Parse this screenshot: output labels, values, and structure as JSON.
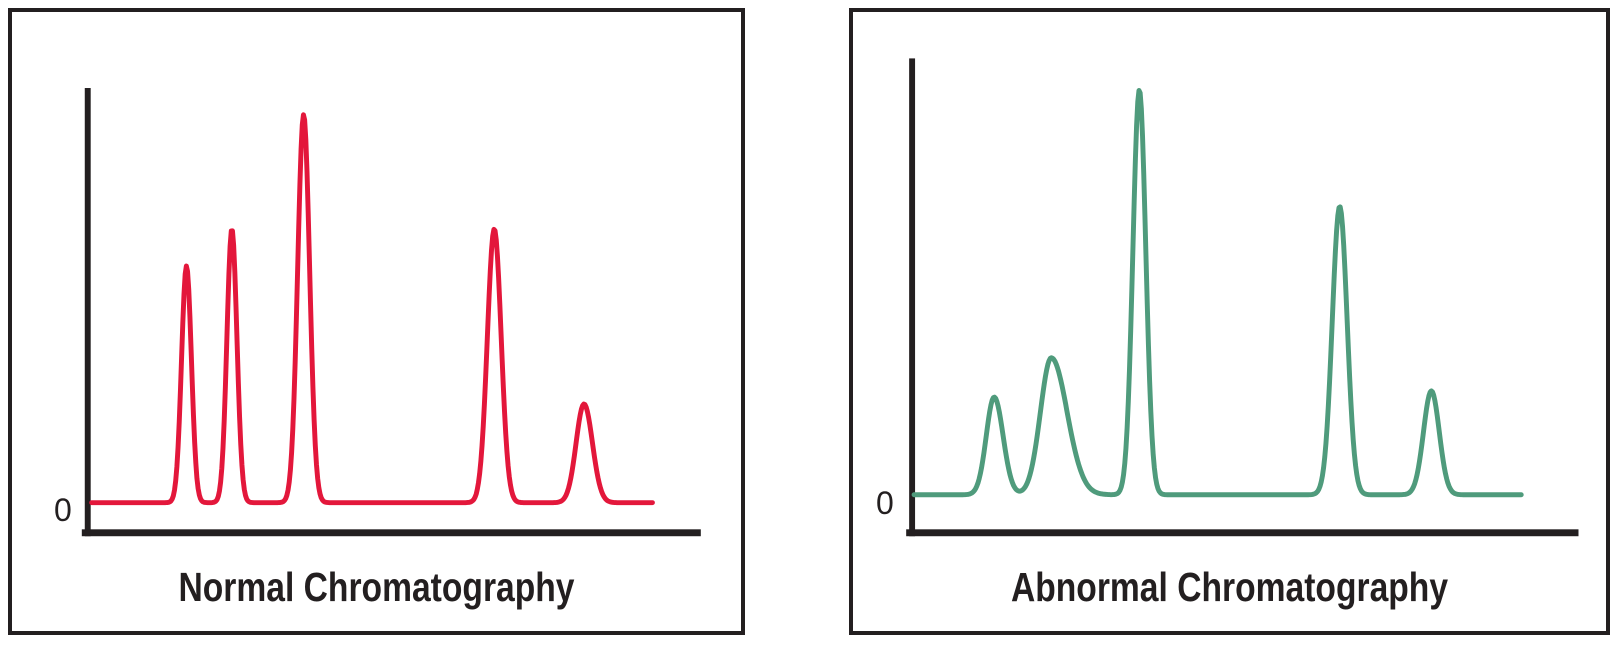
{
  "colors": {
    "axis": "#231f20",
    "border": "#231f20",
    "text": "#231f20",
    "normal_line": "#e3173b",
    "abnormal_line": "#4f9b7c",
    "background": "#ffffff"
  },
  "chart_data": [
    {
      "type": "line",
      "title": "Normal Chromatography",
      "y_zero_tick": "0",
      "xlabel": "",
      "ylabel": "",
      "grid": false,
      "legend": "none",
      "line_color": "#e3173b",
      "x_unit": "fraction_of_baseline",
      "height_unit": "fraction_of_y_axis_span",
      "baseline_value": 0,
      "x_range": [
        0,
        1
      ],
      "peaks": [
        {
          "position": 0.169,
          "height": 0.571,
          "sigma_left": 0.0088,
          "sigma_right": 0.0088
        },
        {
          "position": 0.25,
          "height": 0.66,
          "sigma_left": 0.0088,
          "sigma_right": 0.009
        },
        {
          "position": 0.378,
          "height": 0.936,
          "sigma_left": 0.0106,
          "sigma_right": 0.0106
        },
        {
          "position": 0.718,
          "height": 0.66,
          "sigma_left": 0.0123,
          "sigma_right": 0.0123
        },
        {
          "position": 0.878,
          "height": 0.238,
          "sigma_left": 0.0141,
          "sigma_right": 0.015
        }
      ]
    },
    {
      "type": "line",
      "title": "Abnormal Chromatography",
      "y_zero_tick": "0",
      "xlabel": "",
      "ylabel": "",
      "grid": false,
      "legend": "none",
      "line_color": "#4f9b7c",
      "x_unit": "fraction_of_baseline",
      "height_unit": "fraction_of_y_axis_span",
      "baseline_value": 0,
      "x_range": [
        0,
        1
      ],
      "peaks": [
        {
          "position": 0.132,
          "height": 0.224,
          "sigma_left": 0.013,
          "sigma_right": 0.0146
        },
        {
          "position": 0.226,
          "height": 0.314,
          "sigma_left": 0.0179,
          "sigma_right": 0.026
        },
        {
          "position": 0.371,
          "height": 0.928,
          "sigma_left": 0.0106,
          "sigma_right": 0.0106
        },
        {
          "position": 0.701,
          "height": 0.661,
          "sigma_left": 0.0122,
          "sigma_right": 0.0122
        },
        {
          "position": 0.852,
          "height": 0.238,
          "sigma_left": 0.013,
          "sigma_right": 0.013
        }
      ]
    }
  ]
}
